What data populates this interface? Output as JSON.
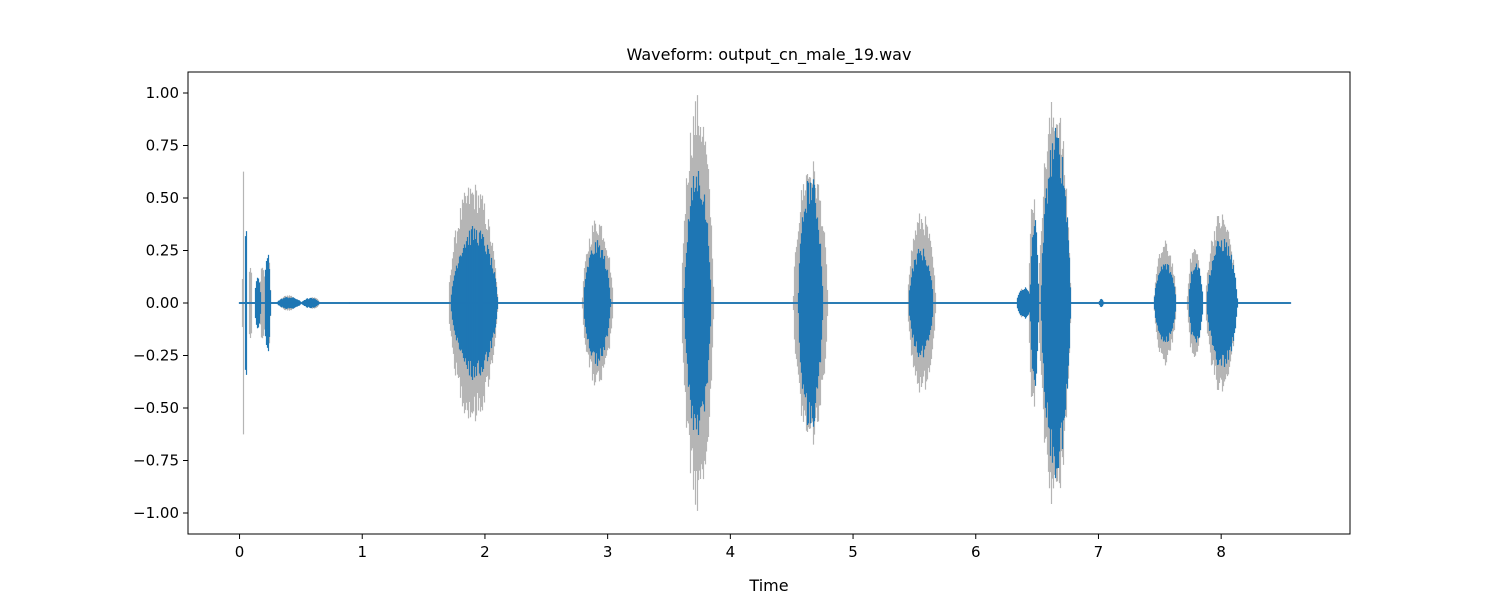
{
  "chart_data": {
    "type": "area",
    "title": "Waveform: output_cn_male_19.wav",
    "xlabel": "Time",
    "ylabel": "",
    "xlim": [
      -0.42,
      9.05
    ],
    "ylim": [
      -1.1,
      1.1
    ],
    "grid": false,
    "xticks": [
      0,
      1,
      2,
      3,
      4,
      5,
      6,
      7,
      8
    ],
    "yticks": [
      1.0,
      0.75,
      0.5,
      0.25,
      0.0,
      -0.25,
      -0.5,
      -0.75,
      -1.0
    ],
    "xtick_labels": [
      "0",
      "1",
      "2",
      "3",
      "4",
      "5",
      "6",
      "7",
      "8"
    ],
    "ytick_labels": [
      "1.00",
      "0.75",
      "0.50",
      "0.25",
      "0.00",
      "−0.25",
      "−0.50",
      "−0.75",
      "−1.00"
    ],
    "duration_s": 8.56,
    "series": [
      {
        "role": "original-envelope",
        "color": "#b5b5b5",
        "events": [
          {
            "t": 0.02,
            "dur": 0.01,
            "amp": 1.0
          },
          {
            "t": 0.07,
            "dur": 0.03,
            "amp": 0.2
          },
          {
            "t": 0.16,
            "dur": 0.05,
            "amp": 0.2
          },
          {
            "t": 0.22,
            "dur": 0.03,
            "amp": 0.22
          },
          {
            "t": 0.32,
            "dur": 0.15,
            "amp": 0.04
          },
          {
            "t": 0.55,
            "dur": 0.1,
            "amp": 0.03
          },
          {
            "t": 1.7,
            "dur": 0.4,
            "amp": 0.58
          },
          {
            "t": 2.79,
            "dur": 0.25,
            "amp": 0.42
          },
          {
            "t": 3.6,
            "dur": 0.26,
            "amp": 1.0
          },
          {
            "t": 4.51,
            "dur": 0.28,
            "amp": 0.7
          },
          {
            "t": 5.44,
            "dur": 0.23,
            "amp": 0.44
          },
          {
            "t": 6.33,
            "dur": 0.12,
            "amp": 0.08
          },
          {
            "t": 6.43,
            "dur": 0.07,
            "amp": 0.56
          },
          {
            "t": 6.51,
            "dur": 0.26,
            "amp": 1.0
          },
          {
            "t": 7.0,
            "dur": 0.04,
            "amp": 0.02
          },
          {
            "t": 7.45,
            "dur": 0.18,
            "amp": 0.3
          },
          {
            "t": 7.72,
            "dur": 0.12,
            "amp": 0.28
          },
          {
            "t": 7.87,
            "dur": 0.25,
            "amp": 0.44
          }
        ]
      },
      {
        "role": "processed-waveform",
        "color": "#1f77b4",
        "events": [
          {
            "t": 0.04,
            "dur": 0.02,
            "amp": 0.44
          },
          {
            "t": 0.12,
            "dur": 0.05,
            "amp": 0.15
          },
          {
            "t": 0.2,
            "dur": 0.05,
            "amp": 0.26
          },
          {
            "t": 0.3,
            "dur": 0.2,
            "amp": 0.03
          },
          {
            "t": 0.5,
            "dur": 0.15,
            "amp": 0.025
          },
          {
            "t": 0.88,
            "dur": 0.03,
            "amp": 0.005
          },
          {
            "t": 1.72,
            "dur": 0.38,
            "amp": 0.37
          },
          {
            "t": 2.8,
            "dur": 0.22,
            "amp": 0.3
          },
          {
            "t": 3.62,
            "dur": 0.22,
            "amp": 0.66
          },
          {
            "t": 4.55,
            "dur": 0.2,
            "amp": 0.62
          },
          {
            "t": 5.45,
            "dur": 0.2,
            "amp": 0.27
          },
          {
            "t": 6.33,
            "dur": 0.12,
            "amp": 0.08
          },
          {
            "t": 6.44,
            "dur": 0.07,
            "amp": 0.42
          },
          {
            "t": 6.53,
            "dur": 0.24,
            "amp": 0.84
          },
          {
            "t": 7.0,
            "dur": 0.04,
            "amp": 0.02
          },
          {
            "t": 7.45,
            "dur": 0.18,
            "amp": 0.2
          },
          {
            "t": 7.73,
            "dur": 0.12,
            "amp": 0.21
          },
          {
            "t": 7.88,
            "dur": 0.25,
            "amp": 0.32
          }
        ]
      }
    ]
  }
}
